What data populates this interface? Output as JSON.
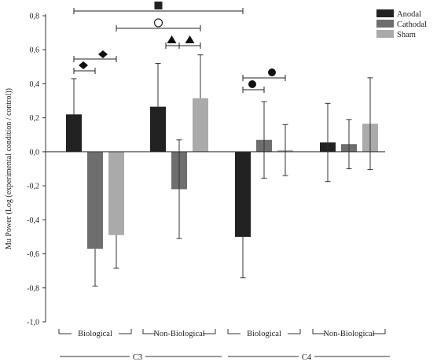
{
  "chart_data": {
    "type": "bar",
    "ylabel": "Mu Power (Log (experimental condition / control))",
    "ylim": [
      -1.0,
      0.8
    ],
    "y_ticks": [
      "0,8",
      "0,6",
      "0,4",
      "0,2",
      "0,0",
      "-0,2",
      "-0,4",
      "-0,6",
      "-0,8",
      "-1,0"
    ],
    "electrodes": [
      "C3",
      "C4"
    ],
    "groups": [
      {
        "label": "Biological",
        "electrode": "C3"
      },
      {
        "label": "Non-Biological",
        "electrode": "C3"
      },
      {
        "label": "Biological",
        "electrode": "C4"
      },
      {
        "label": "Non-Biological",
        "electrode": "C4"
      }
    ],
    "series": [
      {
        "name": "Anodal",
        "color": "#222222",
        "values": [
          0.22,
          0.265,
          -0.5,
          0.055
        ],
        "error_bars": [
          0.21,
          0.255,
          0.24,
          0.23
        ],
        "error_direction": [
          "up",
          "up",
          "down",
          "both"
        ]
      },
      {
        "name": "Cathodal",
        "color": "#6e6e6e",
        "values": [
          -0.57,
          -0.22,
          0.07,
          0.045
        ],
        "error_bars": [
          0.22,
          0.29,
          0.225,
          0.145
        ],
        "error_direction": [
          "down",
          "both",
          "both",
          "both"
        ]
      },
      {
        "name": "Sham",
        "color": "#aaaaaa",
        "values": [
          -0.49,
          0.315,
          0.01,
          0.165
        ],
        "error_bars": [
          0.195,
          0.255,
          0.15,
          0.27
        ],
        "error_direction": [
          "down",
          "up",
          "both",
          "both"
        ]
      }
    ],
    "significance": [
      {
        "symbol": "square",
        "from": "C3 Biological Anodal",
        "to": "C4 Biological Anodal"
      },
      {
        "symbol": "circle-open",
        "from": "C3 Biological Sham",
        "to": "C3 Non-Biological Sham"
      },
      {
        "symbol": "diamond",
        "from": "C3 Biological Anodal",
        "to": "C3 Biological Cathodal"
      },
      {
        "symbol": "diamond",
        "from": "C3 Biological Anodal",
        "to": "C3 Biological Sham"
      },
      {
        "symbol": "triangle",
        "from": "C3 Non-Biological Anodal",
        "to": "C3 Non-Biological Cathodal"
      },
      {
        "symbol": "triangle",
        "from": "C3 Non-Biological Cathodal",
        "to": "C3 Non-Biological Sham"
      },
      {
        "symbol": "circle-filled",
        "from": "C4 Biological Anodal",
        "to": "C4 Biological Cathodal"
      },
      {
        "symbol": "circle-filled",
        "from": "C4 Biological Anodal",
        "to": "C4 Biological Sham"
      }
    ],
    "legend": {
      "position": "top-right",
      "entries": [
        "Anodal",
        "Cathodal",
        "Sham"
      ]
    },
    "grid": false
  }
}
